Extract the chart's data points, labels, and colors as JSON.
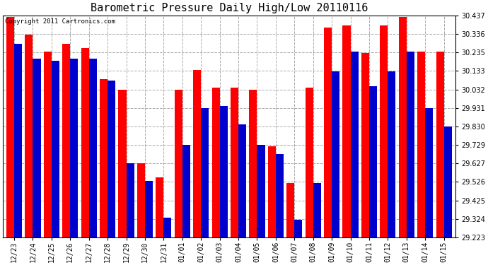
{
  "title": "Barometric Pressure Daily High/Low 20110116",
  "copyright": "Copyright 2011 Cartronics.com",
  "dates": [
    "12/23",
    "12/24",
    "12/25",
    "12/26",
    "12/27",
    "12/28",
    "12/29",
    "12/30",
    "12/31",
    "01/01",
    "01/02",
    "01/03",
    "01/04",
    "01/05",
    "01/06",
    "01/07",
    "01/08",
    "01/09",
    "01/10",
    "01/11",
    "01/12",
    "01/13",
    "01/14",
    "01/15"
  ],
  "highs": [
    30.43,
    30.33,
    30.24,
    30.28,
    30.26,
    30.09,
    30.03,
    29.63,
    29.55,
    30.03,
    30.14,
    30.04,
    30.04,
    30.03,
    29.72,
    29.52,
    30.04,
    30.37,
    30.38,
    30.23,
    30.38,
    30.43,
    30.24,
    30.24
  ],
  "lows": [
    30.28,
    30.2,
    30.19,
    30.2,
    30.2,
    30.08,
    29.63,
    29.53,
    29.33,
    29.73,
    29.93,
    29.94,
    29.84,
    29.73,
    29.68,
    29.32,
    29.52,
    30.13,
    30.24,
    30.05,
    30.13,
    30.24,
    29.93,
    29.83
  ],
  "bar_width": 0.42,
  "ylim_min": 29.223,
  "ylim_max": 30.437,
  "yticks": [
    29.223,
    29.324,
    29.425,
    29.526,
    29.627,
    29.729,
    29.83,
    29.931,
    30.032,
    30.133,
    30.235,
    30.336,
    30.437
  ],
  "high_color": "#ff0000",
  "low_color": "#0000cc",
  "bg_color": "#ffffff",
  "grid_color": "#aaaaaa",
  "title_fontsize": 11,
  "tick_fontsize": 7,
  "copyright_fontsize": 6.5,
  "figwidth": 6.9,
  "figheight": 3.75,
  "dpi": 100
}
